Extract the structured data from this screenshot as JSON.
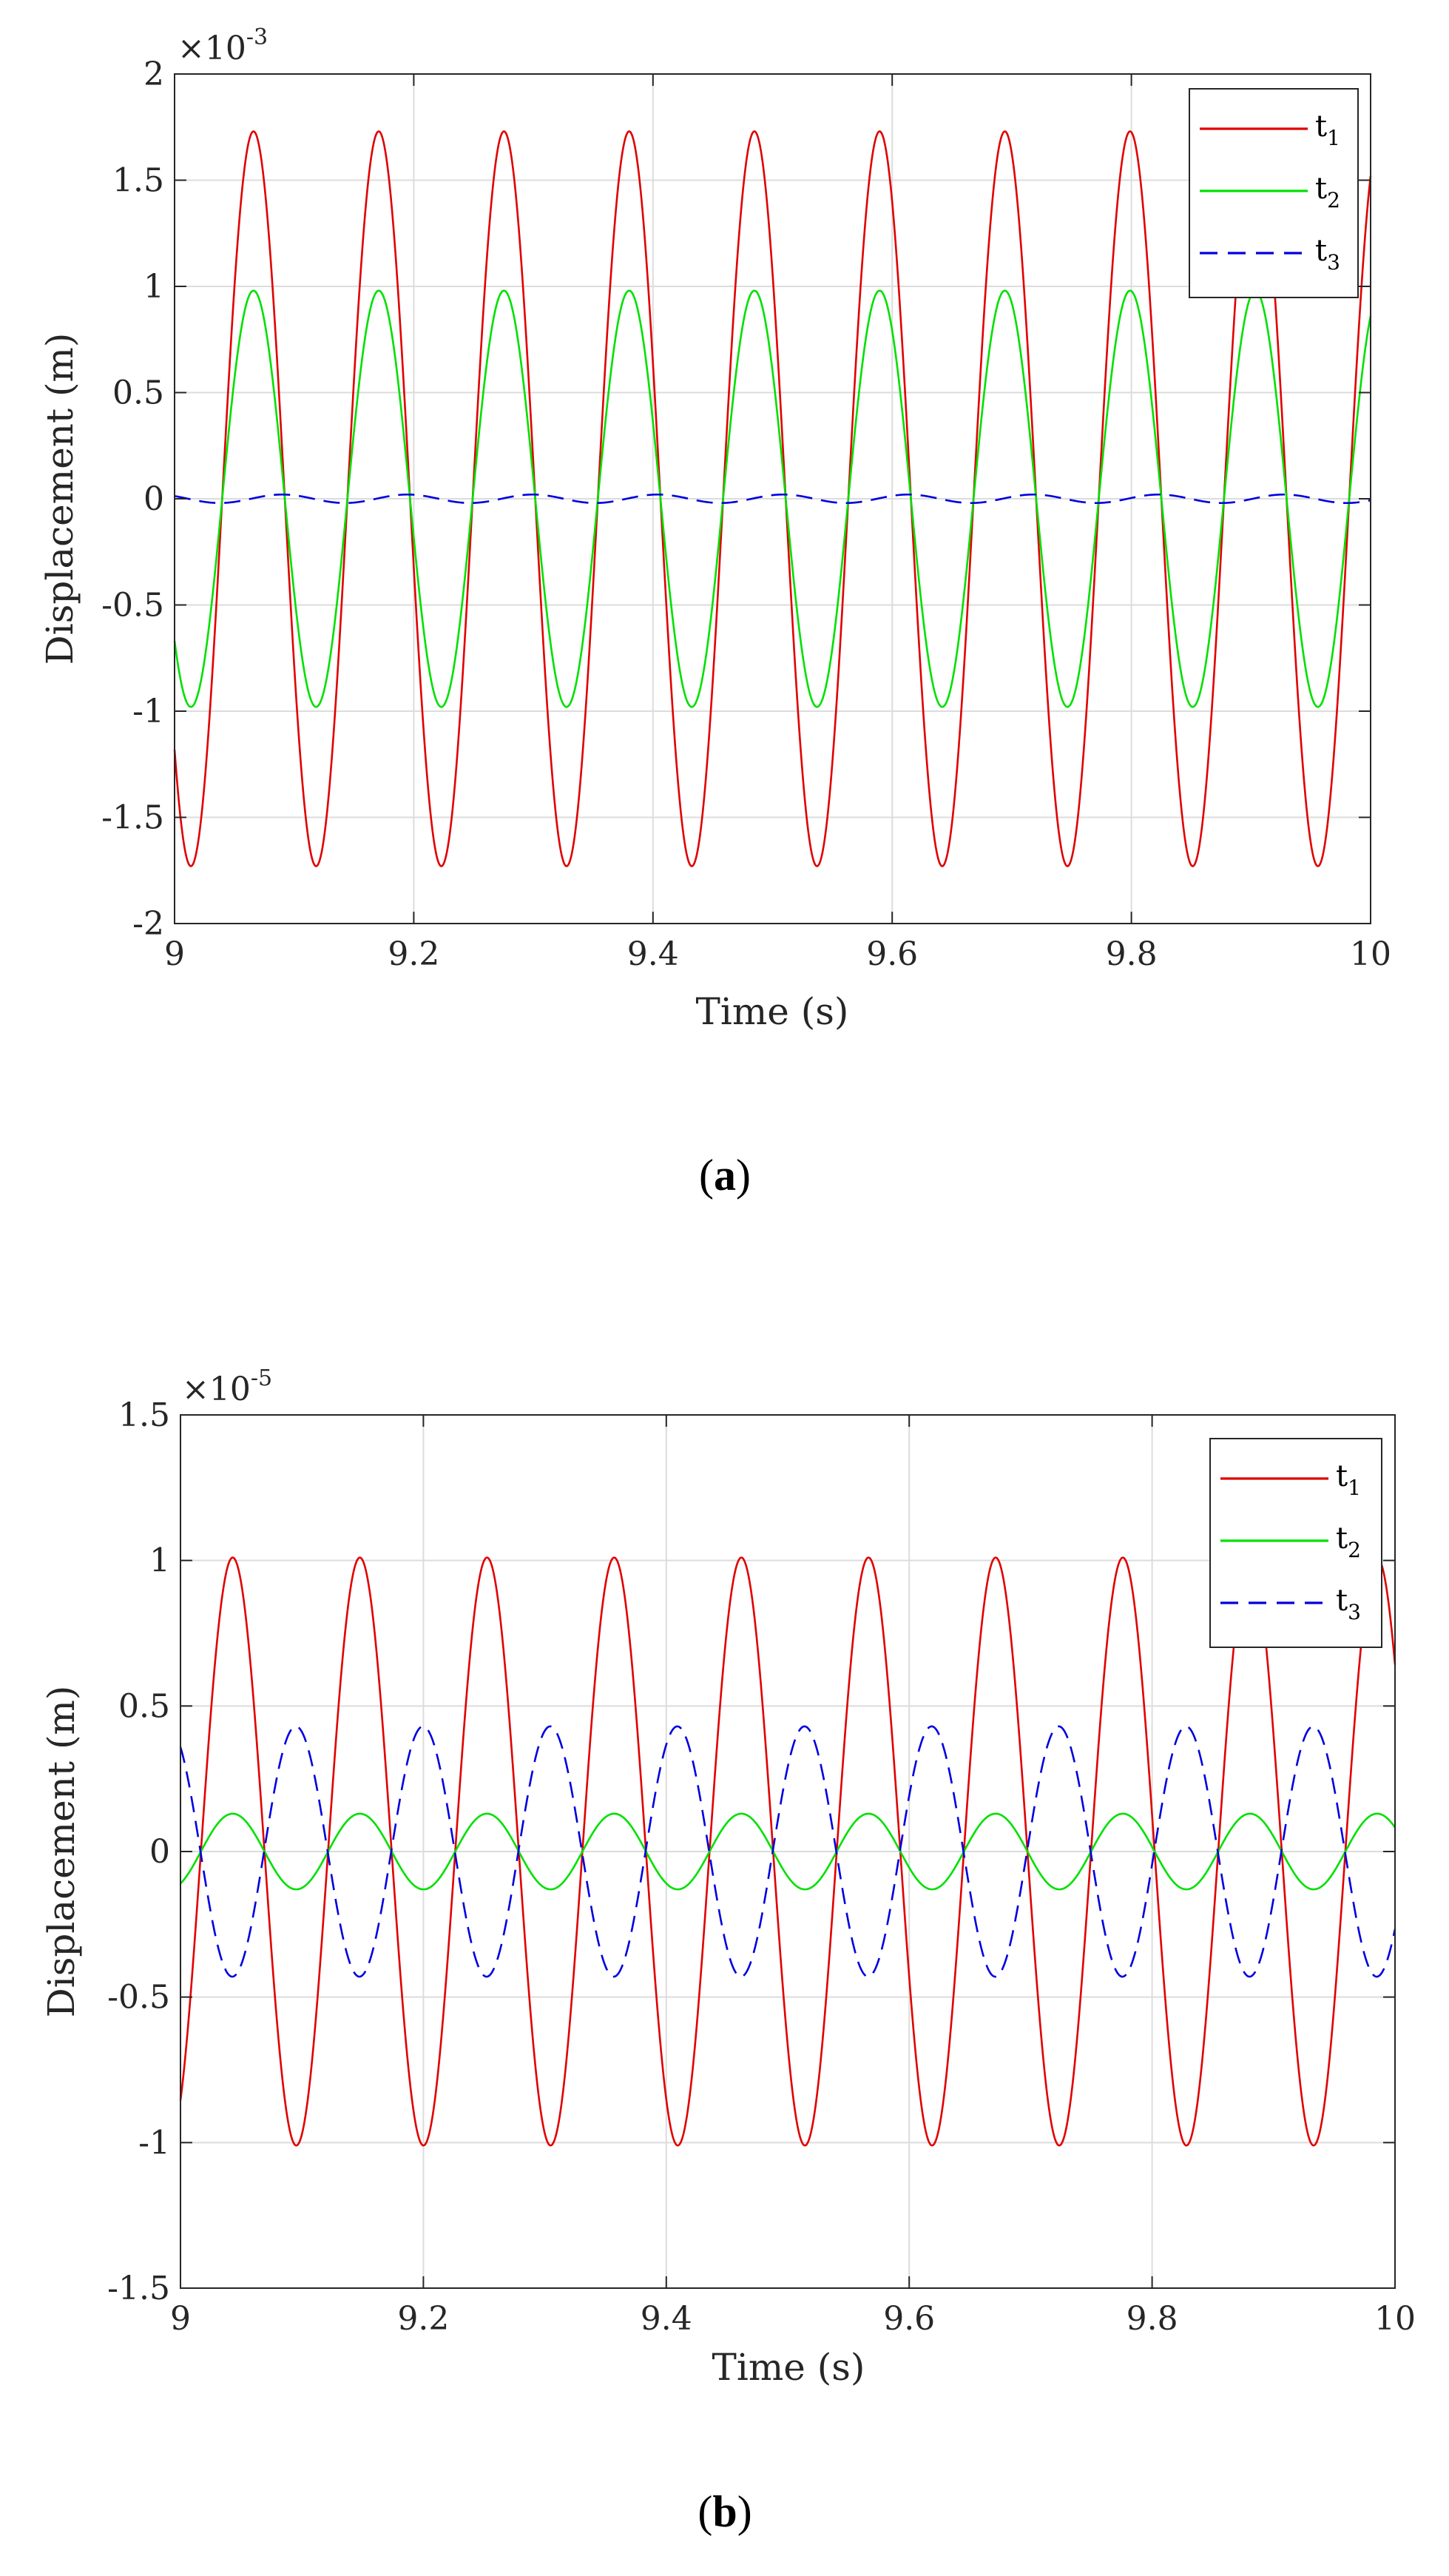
{
  "chart_data": [
    {
      "type": "line",
      "panel_label": "a",
      "title": "",
      "xlabel": "Time (s)",
      "ylabel": "Displacement (m)",
      "exponent": {
        "base": "×10",
        "power": "-3"
      },
      "xlim": [
        9,
        10
      ],
      "ylim": [
        -2,
        2
      ],
      "xticks": [
        "9",
        "9.2",
        "9.4",
        "9.6",
        "9.8",
        "10"
      ],
      "yticks": [
        "-2",
        "-1.5",
        "-1",
        "-0.5",
        "0",
        "0.5",
        "1",
        "1.5",
        "2"
      ],
      "grid": true,
      "legend_position": "top-right",
      "series": [
        {
          "name": "t",
          "sub": "1",
          "color": "#e00000",
          "dash": "solid",
          "amplitude": 1.73,
          "period": 0.1047,
          "phase_ref_x": 9.066
        },
        {
          "name": "t",
          "sub": "2",
          "color": "#00e000",
          "dash": "solid",
          "amplitude": 0.98,
          "period": 0.1047,
          "phase_ref_x": 9.066
        },
        {
          "name": "t",
          "sub": "3",
          "color": "#0000e0",
          "dash": "dashed",
          "amplitude": 0.02,
          "period": 0.1047,
          "phase_ref_x": 9.09
        }
      ]
    },
    {
      "type": "line",
      "panel_label": "b",
      "title": "",
      "xlabel": "Time (s)",
      "ylabel": "Displacement (m)",
      "exponent": {
        "base": "×10",
        "power": "-5"
      },
      "xlim": [
        9,
        10
      ],
      "ylim": [
        -1.5,
        1.5
      ],
      "xticks": [
        "9",
        "9.2",
        "9.4",
        "9.6",
        "9.8",
        "10"
      ],
      "yticks": [
        "-1.5",
        "-1",
        "-0.5",
        "0",
        "0.5",
        "1",
        "1.5"
      ],
      "grid": true,
      "legend_position": "top-right",
      "series": [
        {
          "name": "t",
          "sub": "1",
          "color": "#e00000",
          "dash": "solid",
          "amplitude": 1.01,
          "period": 0.1047,
          "phase_ref_x": 9.043
        },
        {
          "name": "t",
          "sub": "2",
          "color": "#00e000",
          "dash": "solid",
          "amplitude": 0.13,
          "period": 0.1047,
          "phase_ref_x": 9.043
        },
        {
          "name": "t",
          "sub": "3",
          "color": "#0000e0",
          "dash": "dashed",
          "amplitude": 0.43,
          "period": 0.1047,
          "phase_ref_x": 9.095
        }
      ]
    }
  ]
}
